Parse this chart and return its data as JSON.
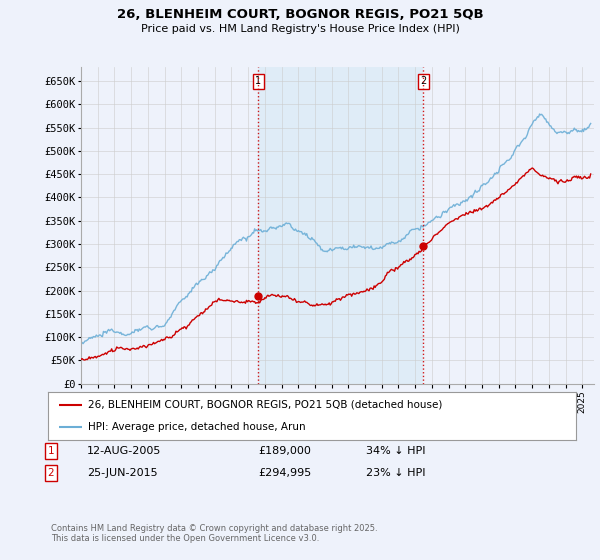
{
  "title_line1": "26, BLENHEIM COURT, BOGNOR REGIS, PO21 5QB",
  "title_line2": "Price paid vs. HM Land Registry's House Price Index (HPI)",
  "ylim": [
    0,
    680000
  ],
  "yticks": [
    0,
    50000,
    100000,
    150000,
    200000,
    250000,
    300000,
    350000,
    400000,
    450000,
    500000,
    550000,
    600000,
    650000
  ],
  "ytick_labels": [
    "£0",
    "£50K",
    "£100K",
    "£150K",
    "£200K",
    "£250K",
    "£300K",
    "£350K",
    "£400K",
    "£450K",
    "£500K",
    "£550K",
    "£600K",
    "£650K"
  ],
  "hpi_color": "#6baed6",
  "hpi_fill_color": "#d6e8f5",
  "price_color": "#cc0000",
  "marker1_x": 2005.62,
  "marker1_y": 189000,
  "marker1_label": "1",
  "marker1_date": "12-AUG-2005",
  "marker1_price": "£189,000",
  "marker1_note": "34% ↓ HPI",
  "marker2_x": 2015.48,
  "marker2_y": 294995,
  "marker2_label": "2",
  "marker2_date": "25-JUN-2015",
  "marker2_price": "£294,995",
  "marker2_note": "23% ↓ HPI",
  "legend_label1": "26, BLENHEIM COURT, BOGNOR REGIS, PO21 5QB (detached house)",
  "legend_label2": "HPI: Average price, detached house, Arun",
  "footer": "Contains HM Land Registry data © Crown copyright and database right 2025.\nThis data is licensed under the Open Government Licence v3.0.",
  "background_color": "#eef2fb",
  "plot_bg_color": "#eef2fb",
  "grid_color": "#cccccc",
  "xlim_start": 1995,
  "xlim_end": 2025.7
}
